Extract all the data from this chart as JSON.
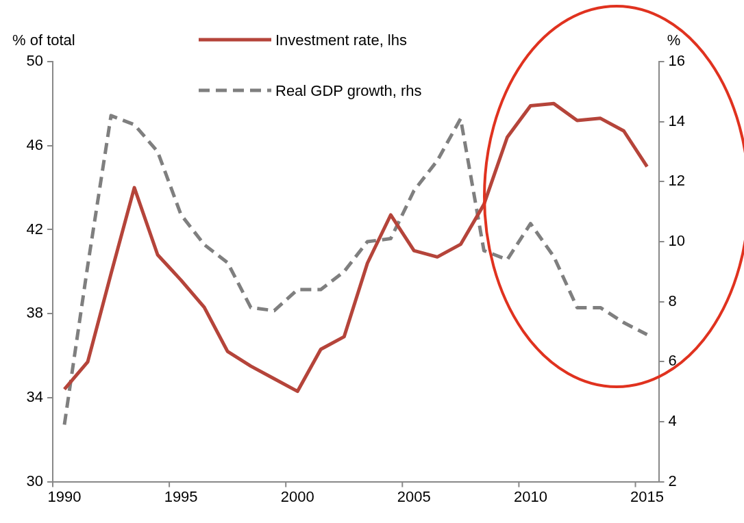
{
  "chart_data": {
    "type": "line",
    "ylabel": "% of total",
    "y2label": "%",
    "categories": [
      "1990",
      null,
      null,
      null,
      null,
      "1995",
      null,
      null,
      null,
      null,
      "2000",
      null,
      null,
      null,
      null,
      "2005",
      null,
      null,
      null,
      null,
      "2010",
      null,
      null,
      null,
      null,
      "2015"
    ],
    "series": [
      {
        "name": "Investment rate, lhs",
        "color": "#b5443a",
        "line_style": "solid",
        "values": [
          34.4,
          35.7,
          39.9,
          44.0,
          40.8,
          39.6,
          38.3,
          36.2,
          35.5,
          34.9,
          34.3,
          36.3,
          36.9,
          40.4,
          42.7,
          41.0,
          40.7,
          41.3,
          43.2,
          46.4,
          47.9,
          48.0,
          47.2,
          47.3,
          46.7,
          45.0
        ]
      },
      {
        "name": "Real GDP growth, rhs",
        "color": "#7f7f7f",
        "line_style": "dashed",
        "axis": "y2",
        "values": [
          3.9,
          9.2,
          14.2,
          13.9,
          13.0,
          10.9,
          9.9,
          9.3,
          7.8,
          7.7,
          8.4,
          8.4,
          9.0,
          10.0,
          10.1,
          11.7,
          12.7,
          14.1,
          9.7,
          9.4,
          10.6,
          9.5,
          7.8,
          7.8,
          7.3,
          6.9
        ]
      }
    ],
    "ylim": [
      30,
      50
    ],
    "yticks": [
      30,
      34,
      38,
      42,
      46,
      50
    ],
    "y2lim": [
      2,
      16
    ],
    "y2ticks": [
      2,
      4,
      6,
      8,
      10,
      12,
      14,
      16
    ],
    "grid": false,
    "legend": "top",
    "marker": "none"
  }
}
